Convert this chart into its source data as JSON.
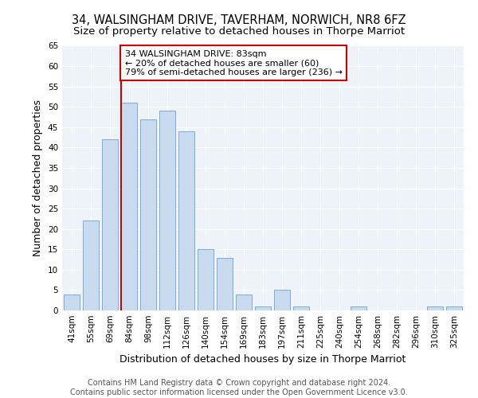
{
  "title": "34, WALSINGHAM DRIVE, TAVERHAM, NORWICH, NR8 6FZ",
  "subtitle": "Size of property relative to detached houses in Thorpe Marriot",
  "xlabel": "Distribution of detached houses by size in Thorpe Marriot",
  "ylabel": "Number of detached properties",
  "categories": [
    "41sqm",
    "55sqm",
    "69sqm",
    "84sqm",
    "98sqm",
    "112sqm",
    "126sqm",
    "140sqm",
    "154sqm",
    "169sqm",
    "183sqm",
    "197sqm",
    "211sqm",
    "225sqm",
    "240sqm",
    "254sqm",
    "268sqm",
    "282sqm",
    "296sqm",
    "310sqm",
    "325sqm"
  ],
  "values": [
    4,
    22,
    42,
    51,
    47,
    49,
    44,
    15,
    13,
    4,
    1,
    5,
    1,
    0,
    0,
    1,
    0,
    0,
    0,
    1,
    1
  ],
  "bar_color": "#c8daee",
  "bar_edge_color": "#7aadd4",
  "vline_x_index": 3,
  "vline_color": "#cc0000",
  "annotation_text": "34 WALSINGHAM DRIVE: 83sqm\n← 20% of detached houses are smaller (60)\n79% of semi-detached houses are larger (236) →",
  "annotation_box_color": "#cc0000",
  "ylim": [
    0,
    65
  ],
  "yticks": [
    0,
    5,
    10,
    15,
    20,
    25,
    30,
    35,
    40,
    45,
    50,
    55,
    60,
    65
  ],
  "footer_line1": "Contains HM Land Registry data © Crown copyright and database right 2024.",
  "footer_line2": "Contains public sector information licensed under the Open Government Licence v3.0.",
  "background_color": "#eef2f9",
  "title_fontsize": 10.5,
  "subtitle_fontsize": 9.5,
  "axis_label_fontsize": 9,
  "tick_fontsize": 7.5,
  "annotation_fontsize": 8,
  "footer_fontsize": 7
}
